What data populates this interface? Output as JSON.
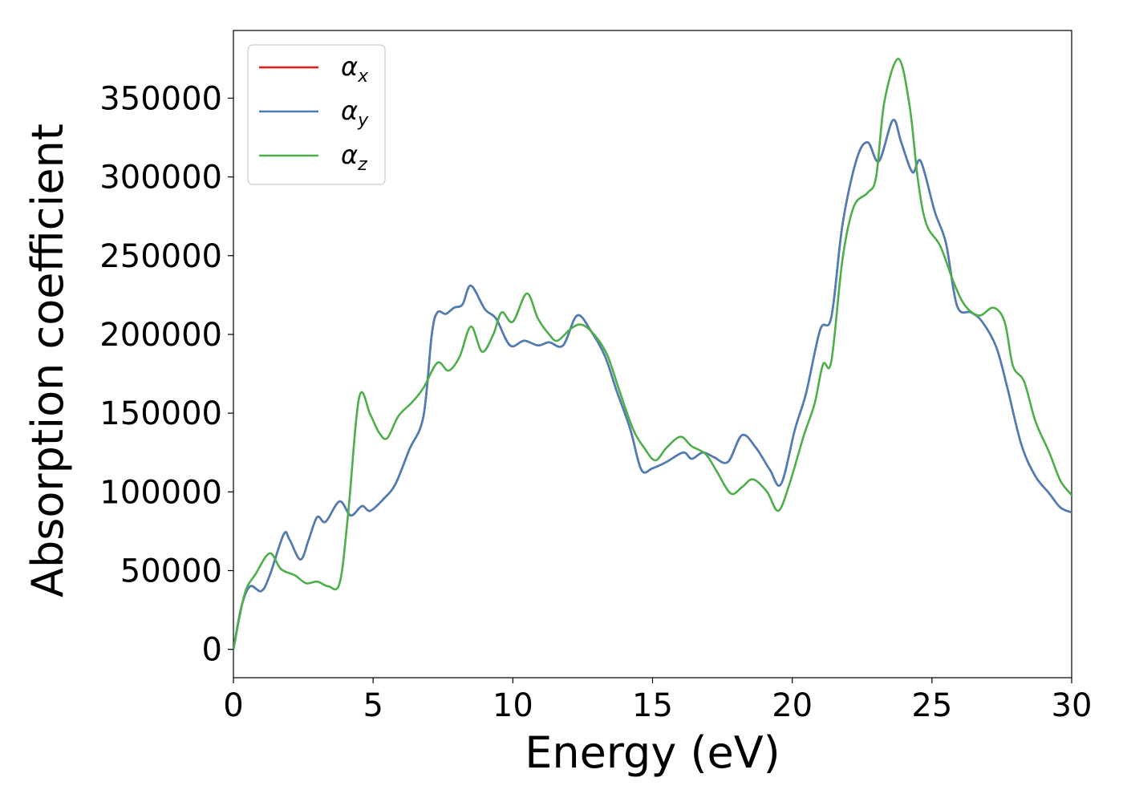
{
  "chart_data": {
    "type": "line",
    "title": "",
    "xlabel": "Energy (eV)",
    "ylabel": "Absorption coefficient",
    "xlim": [
      0,
      30
    ],
    "ylim": [
      -18000,
      393000
    ],
    "xticks": [
      0,
      5,
      10,
      15,
      20,
      25,
      30
    ],
    "xtick_labels": [
      "0",
      "5",
      "10",
      "15",
      "20",
      "25",
      "30"
    ],
    "yticks": [
      0,
      50000,
      100000,
      150000,
      200000,
      250000,
      300000,
      350000
    ],
    "ytick_labels": [
      "0",
      "50000",
      "100000",
      "150000",
      "200000",
      "250000",
      "300000",
      "350000"
    ],
    "grid": false,
    "legend_position": "top-left",
    "series": [
      {
        "name": "α",
        "subscript": "x",
        "color": "#e41a1c",
        "points": [
          [
            0,
            0
          ],
          [
            0.3,
            28000
          ],
          [
            0.6,
            40000
          ],
          [
            1.0,
            37000
          ],
          [
            1.3,
            47000
          ],
          [
            1.8,
            73000
          ],
          [
            2.0,
            70000
          ],
          [
            2.4,
            57000
          ],
          [
            2.7,
            70000
          ],
          [
            3.0,
            84000
          ],
          [
            3.3,
            81000
          ],
          [
            3.8,
            94000
          ],
          [
            4.2,
            85000
          ],
          [
            4.6,
            91000
          ],
          [
            4.9,
            88000
          ],
          [
            5.4,
            96000
          ],
          [
            5.8,
            105000
          ],
          [
            6.3,
            127000
          ],
          [
            6.8,
            148000
          ],
          [
            7.1,
            200000
          ],
          [
            7.3,
            214000
          ],
          [
            7.6,
            213000
          ],
          [
            7.9,
            217000
          ],
          [
            8.2,
            219000
          ],
          [
            8.5,
            231000
          ],
          [
            9.0,
            216000
          ],
          [
            9.4,
            210000
          ],
          [
            9.9,
            193000
          ],
          [
            10.4,
            196000
          ],
          [
            10.9,
            193000
          ],
          [
            11.3,
            195000
          ],
          [
            11.8,
            193000
          ],
          [
            12.3,
            212000
          ],
          [
            12.8,
            202000
          ],
          [
            13.3,
            186000
          ],
          [
            13.7,
            165000
          ],
          [
            14.2,
            140000
          ],
          [
            14.6,
            114000
          ],
          [
            15.0,
            115000
          ],
          [
            15.5,
            119000
          ],
          [
            16.1,
            125000
          ],
          [
            16.4,
            121000
          ],
          [
            16.8,
            125000
          ],
          [
            17.2,
            122000
          ],
          [
            17.7,
            119000
          ],
          [
            18.2,
            136000
          ],
          [
            18.7,
            128000
          ],
          [
            19.2,
            114000
          ],
          [
            19.6,
            105000
          ],
          [
            20.1,
            140000
          ],
          [
            20.5,
            163000
          ],
          [
            21.0,
            203000
          ],
          [
            21.4,
            211000
          ],
          [
            21.8,
            270000
          ],
          [
            22.3,
            311000
          ],
          [
            22.7,
            322000
          ],
          [
            23.1,
            310000
          ],
          [
            23.6,
            336000
          ],
          [
            23.9,
            322000
          ],
          [
            24.3,
            303000
          ],
          [
            24.6,
            310000
          ],
          [
            25.1,
            278000
          ],
          [
            25.5,
            258000
          ],
          [
            25.9,
            218000
          ],
          [
            26.4,
            214000
          ],
          [
            26.8,
            208000
          ],
          [
            27.3,
            192000
          ],
          [
            27.7,
            166000
          ],
          [
            28.2,
            130000
          ],
          [
            28.7,
            110000
          ],
          [
            29.2,
            99000
          ],
          [
            29.6,
            90000
          ],
          [
            30,
            87000
          ]
        ]
      },
      {
        "name": "α",
        "subscript": "y",
        "color": "#4a7fb8",
        "points": [
          [
            0,
            0
          ],
          [
            0.3,
            28000
          ],
          [
            0.6,
            40000
          ],
          [
            1.0,
            37000
          ],
          [
            1.3,
            47000
          ],
          [
            1.8,
            73000
          ],
          [
            2.0,
            70000
          ],
          [
            2.4,
            57000
          ],
          [
            2.7,
            70000
          ],
          [
            3.0,
            84000
          ],
          [
            3.3,
            81000
          ],
          [
            3.8,
            94000
          ],
          [
            4.2,
            85000
          ],
          [
            4.6,
            91000
          ],
          [
            4.9,
            88000
          ],
          [
            5.4,
            96000
          ],
          [
            5.8,
            105000
          ],
          [
            6.3,
            127000
          ],
          [
            6.8,
            148000
          ],
          [
            7.1,
            200000
          ],
          [
            7.3,
            214000
          ],
          [
            7.6,
            213000
          ],
          [
            7.9,
            217000
          ],
          [
            8.2,
            219000
          ],
          [
            8.5,
            231000
          ],
          [
            9.0,
            216000
          ],
          [
            9.4,
            210000
          ],
          [
            9.9,
            193000
          ],
          [
            10.4,
            196000
          ],
          [
            10.9,
            193000
          ],
          [
            11.3,
            195000
          ],
          [
            11.8,
            193000
          ],
          [
            12.3,
            212000
          ],
          [
            12.8,
            202000
          ],
          [
            13.3,
            186000
          ],
          [
            13.7,
            165000
          ],
          [
            14.2,
            140000
          ],
          [
            14.6,
            114000
          ],
          [
            15.0,
            115000
          ],
          [
            15.5,
            119000
          ],
          [
            16.1,
            125000
          ],
          [
            16.4,
            121000
          ],
          [
            16.8,
            125000
          ],
          [
            17.2,
            122000
          ],
          [
            17.7,
            119000
          ],
          [
            18.2,
            136000
          ],
          [
            18.7,
            128000
          ],
          [
            19.2,
            114000
          ],
          [
            19.6,
            105000
          ],
          [
            20.1,
            140000
          ],
          [
            20.5,
            163000
          ],
          [
            21.0,
            203000
          ],
          [
            21.4,
            211000
          ],
          [
            21.8,
            270000
          ],
          [
            22.3,
            311000
          ],
          [
            22.7,
            322000
          ],
          [
            23.1,
            310000
          ],
          [
            23.6,
            336000
          ],
          [
            23.9,
            322000
          ],
          [
            24.3,
            303000
          ],
          [
            24.6,
            310000
          ],
          [
            25.1,
            278000
          ],
          [
            25.5,
            258000
          ],
          [
            25.9,
            218000
          ],
          [
            26.4,
            214000
          ],
          [
            26.8,
            208000
          ],
          [
            27.3,
            192000
          ],
          [
            27.7,
            166000
          ],
          [
            28.2,
            130000
          ],
          [
            28.7,
            110000
          ],
          [
            29.2,
            99000
          ],
          [
            29.6,
            90000
          ],
          [
            30,
            87000
          ]
        ]
      },
      {
        "name": "α",
        "subscript": "z",
        "color": "#4daf4a",
        "points": [
          [
            0,
            0
          ],
          [
            0.4,
            35000
          ],
          [
            0.8,
            48000
          ],
          [
            1.3,
            61000
          ],
          [
            1.7,
            51000
          ],
          [
            2.2,
            47000
          ],
          [
            2.6,
            42000
          ],
          [
            3.0,
            43000
          ],
          [
            3.4,
            40000
          ],
          [
            3.8,
            42000
          ],
          [
            4.1,
            85000
          ],
          [
            4.5,
            160000
          ],
          [
            4.9,
            149000
          ],
          [
            5.2,
            138000
          ],
          [
            5.5,
            134000
          ],
          [
            5.9,
            148000
          ],
          [
            6.4,
            157000
          ],
          [
            6.8,
            166000
          ],
          [
            7.3,
            182000
          ],
          [
            7.7,
            177000
          ],
          [
            8.1,
            186000
          ],
          [
            8.5,
            205000
          ],
          [
            8.9,
            189000
          ],
          [
            9.3,
            200000
          ],
          [
            9.6,
            214000
          ],
          [
            10.0,
            208000
          ],
          [
            10.5,
            226000
          ],
          [
            10.9,
            210000
          ],
          [
            11.3,
            200000
          ],
          [
            11.6,
            196000
          ],
          [
            12.1,
            204000
          ],
          [
            12.5,
            206000
          ],
          [
            13.0,
            198000
          ],
          [
            13.4,
            186000
          ],
          [
            13.8,
            165000
          ],
          [
            14.3,
            140000
          ],
          [
            14.7,
            128000
          ],
          [
            15.1,
            120000
          ],
          [
            15.5,
            128000
          ],
          [
            16.0,
            135000
          ],
          [
            16.4,
            129000
          ],
          [
            16.9,
            124000
          ],
          [
            17.3,
            113000
          ],
          [
            17.8,
            99000
          ],
          [
            18.2,
            103000
          ],
          [
            18.6,
            108000
          ],
          [
            19.1,
            100000
          ],
          [
            19.5,
            88000
          ],
          [
            19.9,
            105000
          ],
          [
            20.4,
            135000
          ],
          [
            20.8,
            156000
          ],
          [
            21.1,
            181000
          ],
          [
            21.4,
            183000
          ],
          [
            21.8,
            248000
          ],
          [
            22.2,
            281000
          ],
          [
            22.7,
            290000
          ],
          [
            23.0,
            300000
          ],
          [
            23.3,
            348000
          ],
          [
            23.8,
            375000
          ],
          [
            24.2,
            345000
          ],
          [
            24.5,
            298000
          ],
          [
            24.8,
            270000
          ],
          [
            25.3,
            256000
          ],
          [
            25.8,
            232000
          ],
          [
            26.2,
            218000
          ],
          [
            26.7,
            212000
          ],
          [
            27.2,
            217000
          ],
          [
            27.6,
            208000
          ],
          [
            27.9,
            180000
          ],
          [
            28.3,
            170000
          ],
          [
            28.7,
            145000
          ],
          [
            29.2,
            125000
          ],
          [
            29.6,
            107000
          ],
          [
            30,
            98000
          ]
        ]
      }
    ]
  }
}
